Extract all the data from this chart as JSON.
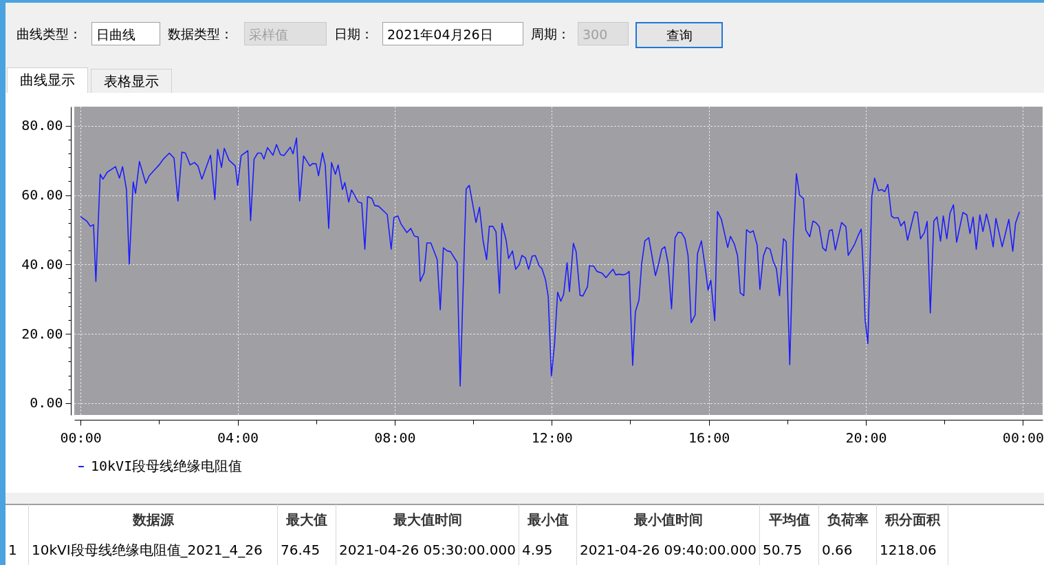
{
  "chart_data": {
    "type": "line",
    "x": [
      0,
      0.16,
      0.25,
      0.33,
      0.39,
      0.5,
      0.57,
      0.68,
      0.89,
      0.99,
      1.07,
      1.17,
      1.24,
      1.34,
      1.4,
      1.5,
      1.66,
      1.75,
      2.0,
      2.11,
      2.26,
      2.38,
      2.48,
      2.58,
      2.67,
      2.79,
      2.9,
      2.99,
      3.09,
      3.31,
      3.42,
      3.49,
      3.59,
      3.66,
      3.78,
      3.94,
      4.0,
      4.09,
      4.26,
      4.33,
      4.42,
      4.51,
      4.6,
      4.67,
      4.76,
      4.9,
      4.99,
      5.09,
      5.18,
      5.34,
      5.41,
      5.5,
      5.58,
      5.68,
      5.84,
      5.91,
      6.0,
      6.06,
      6.16,
      6.23,
      6.32,
      6.39,
      6.49,
      6.56,
      6.67,
      6.73,
      6.83,
      6.9,
      7.07,
      7.16,
      7.24,
      7.31,
      7.42,
      7.49,
      7.59,
      7.81,
      7.91,
      7.98,
      8.08,
      8.16,
      8.31,
      8.41,
      8.5,
      8.6,
      8.65,
      8.75,
      8.82,
      8.92,
      9.08,
      9.16,
      9.24,
      9.34,
      9.42,
      9.59,
      9.667,
      9.82,
      9.9,
      10.07,
      10.16,
      10.25,
      10.34,
      10.41,
      10.5,
      10.58,
      10.67,
      10.73,
      10.84,
      10.9,
      11.0,
      11.08,
      11.17,
      11.24,
      11.33,
      11.41,
      11.5,
      11.58,
      11.68,
      11.75,
      11.84,
      11.91,
      11.99,
      12.07,
      12.15,
      12.23,
      12.3,
      12.39,
      12.45,
      12.55,
      12.62,
      12.72,
      12.79,
      12.91,
      12.96,
      13.07,
      13.15,
      13.28,
      13.38,
      13.48,
      13.56,
      13.63,
      13.72,
      13.81,
      13.9,
      13.97,
      14.06,
      14.13,
      14.22,
      14.29,
      14.37,
      14.47,
      14.64,
      14.72,
      14.8,
      14.88,
      14.96,
      15.05,
      15.14,
      15.22,
      15.3,
      15.39,
      15.47,
      15.55,
      15.65,
      15.71,
      15.81,
      15.91,
      15.98,
      16.05,
      16.15,
      16.22,
      16.32,
      16.48,
      16.55,
      16.65,
      16.73,
      16.8,
      16.89,
      16.96,
      17.05,
      17.13,
      17.23,
      17.3,
      17.39,
      17.47,
      17.56,
      17.64,
      17.72,
      17.8,
      17.9,
      17.97,
      18.06,
      18.15,
      18.23,
      18.31,
      18.41,
      18.47,
      18.57,
      18.65,
      18.73,
      18.81,
      18.9,
      18.98,
      19.07,
      19.14,
      19.22,
      19.38,
      19.49,
      19.55,
      19.71,
      19.8,
      19.88,
      19.94,
      19.98,
      20.05,
      20.15,
      20.22,
      20.32,
      20.4,
      20.48,
      20.56,
      20.65,
      20.72,
      20.82,
      20.89,
      20.98,
      21.06,
      21.24,
      21.31,
      21.39,
      21.49,
      21.56,
      21.64,
      21.73,
      21.81,
      21.9,
      21.97,
      22.06,
      22.14,
      22.23,
      22.31,
      22.47,
      22.57,
      22.65,
      22.73,
      22.81,
      22.9,
      22.98,
      23.07,
      23.15,
      23.24,
      23.31,
      23.47,
      23.64,
      23.74,
      23.81,
      23.91
    ],
    "series": [
      {
        "name": "10kVI段母线绝缘电阻值",
        "color": "#1c1cff",
        "values": [
          53.8,
          52.5,
          51.0,
          51.5,
          35.1,
          66.0,
          64.6,
          66.6,
          68.2,
          64.9,
          68.2,
          61.5,
          40.1,
          63.8,
          60.5,
          69.7,
          63.4,
          65.6,
          68.7,
          70.4,
          72.1,
          70.7,
          58.3,
          72.4,
          72.1,
          68.7,
          69.4,
          68.4,
          64.6,
          71.5,
          58.7,
          73.2,
          68.0,
          73.5,
          70.1,
          68.4,
          62.8,
          71.4,
          72.8,
          52.6,
          70.4,
          72.1,
          72.1,
          70.4,
          73.7,
          71.5,
          74.6,
          71.7,
          71.4,
          73.8,
          71.9,
          76.45,
          58.3,
          71.3,
          68.4,
          69.1,
          69.0,
          65.6,
          72.2,
          68.7,
          50.4,
          69.4,
          66.0,
          68.7,
          61.6,
          63.6,
          58.0,
          61.5,
          58.0,
          57.7,
          44.4,
          59.6,
          59.0,
          57.0,
          56.8,
          54.4,
          44.4,
          53.5,
          54.0,
          51.7,
          49.2,
          50.4,
          48.2,
          47.9,
          35.1,
          37.6,
          46.2,
          46.2,
          41.5,
          26.9,
          44.8,
          43.9,
          43.7,
          40.6,
          4.95,
          61.8,
          62.8,
          52.1,
          56.5,
          46.9,
          41.4,
          51.0,
          51.0,
          49.4,
          31.7,
          51.9,
          46.9,
          41.7,
          43.9,
          38.6,
          39.9,
          42.6,
          41.9,
          38.6,
          42.4,
          42.6,
          39.6,
          38.8,
          35.6,
          30.7,
          7.8,
          17.1,
          32.0,
          29.4,
          31.3,
          40.5,
          32.2,
          46.1,
          43.7,
          31.1,
          30.9,
          33.6,
          39.6,
          39.5,
          38.0,
          37.5,
          36.2,
          37.6,
          38.6,
          37.0,
          37.2,
          37.0,
          37.3,
          38.0,
          10.9,
          26.4,
          29.7,
          40.3,
          46.8,
          47.7,
          36.8,
          40.1,
          44.4,
          45.1,
          40.5,
          27.2,
          47.7,
          49.3,
          49.2,
          47.5,
          42.6,
          23.2,
          25.4,
          43.1,
          46.8,
          38.9,
          32.6,
          35.5,
          23.8,
          55.3,
          53.0,
          44.9,
          48.1,
          45.9,
          42.6,
          31.8,
          31.0,
          50.0,
          49.2,
          49.7,
          45.6,
          32.8,
          42.5,
          44.9,
          44.4,
          40.9,
          38.8,
          31.0,
          47.4,
          46.6,
          11.1,
          47.0,
          66.2,
          60.0,
          59.0,
          49.9,
          48.0,
          52.5,
          52.0,
          50.9,
          44.8,
          43.9,
          49.8,
          50.0,
          44.2,
          52.1,
          50.9,
          42.6,
          45.8,
          48.3,
          50.2,
          36.6,
          24.0,
          17.2,
          59.5,
          64.9,
          61.3,
          61.6,
          61.0,
          63.1,
          54.0,
          53.4,
          53.5,
          51.1,
          52.4,
          47.0,
          55.2,
          55.0,
          47.4,
          49.2,
          52.4,
          26.0,
          52.5,
          53.7,
          46.7,
          54.0,
          47.4,
          54.8,
          57.2,
          46.4,
          55.0,
          54.3,
          48.9,
          53.7,
          44.4,
          54.3,
          49.5,
          54.6,
          50.9,
          45.1,
          53.3,
          45.1,
          53.0,
          43.8,
          51.9,
          55.2
        ]
      }
    ],
    "xlim": [
      -0.16,
      24.5
    ],
    "xticks": [
      {
        "value": 0,
        "label": "00:00"
      },
      {
        "value": 2,
        "label": null
      },
      {
        "value": 4,
        "label": "04:00"
      },
      {
        "value": 6,
        "label": null
      },
      {
        "value": 8,
        "label": "08:00"
      },
      {
        "value": 10,
        "label": null
      },
      {
        "value": 12,
        "label": "12:00"
      },
      {
        "value": 14,
        "label": null
      },
      {
        "value": 16,
        "label": "16:00"
      },
      {
        "value": 18,
        "label": null
      },
      {
        "value": 20,
        "label": "20:00"
      },
      {
        "value": 22,
        "label": null
      },
      {
        "value": 24,
        "label": "00:00"
      }
    ],
    "ylim": [
      -3.4,
      85.5
    ],
    "yticks": [
      {
        "value": 0,
        "label": "0.00"
      },
      {
        "value": 4,
        "label": null
      },
      {
        "value": 8,
        "label": null
      },
      {
        "value": 12,
        "label": null
      },
      {
        "value": 16,
        "label": null
      },
      {
        "value": 20,
        "label": "20.00"
      },
      {
        "value": 24,
        "label": null
      },
      {
        "value": 28,
        "label": null
      },
      {
        "value": 32,
        "label": null
      },
      {
        "value": 36,
        "label": null
      },
      {
        "value": 40,
        "label": "40.00"
      },
      {
        "value": 44,
        "label": null
      },
      {
        "value": 48,
        "label": null
      },
      {
        "value": 52,
        "label": null
      },
      {
        "value": 56,
        "label": null
      },
      {
        "value": 60,
        "label": "60.00"
      },
      {
        "value": 64,
        "label": null
      },
      {
        "value": 68,
        "label": null
      },
      {
        "value": 72,
        "label": null
      },
      {
        "value": 76,
        "label": null
      },
      {
        "value": 80,
        "label": "80.00"
      }
    ],
    "grid": true,
    "legend": "bottom",
    "annotations": [
      "曲线类型：",
      "日曲线",
      "数据类型：",
      "采样值",
      "日期：",
      "2021年04月26日",
      "周期：",
      "300",
      "查询",
      "曲线显示",
      "表格显示",
      "数据源",
      "最大值",
      "最大值时间",
      "最小值",
      "最小值时间",
      "平均值",
      "负荷率",
      "积分面积",
      "1",
      "10kVI段母线绝缘电阻值_2021_4_26",
      "76.45",
      "2021-04-26 05:30:00.000",
      "4.95",
      "2021-04-26 09:40:00.000",
      "50.75",
      "0.66",
      "1218.06"
    ]
  }
}
